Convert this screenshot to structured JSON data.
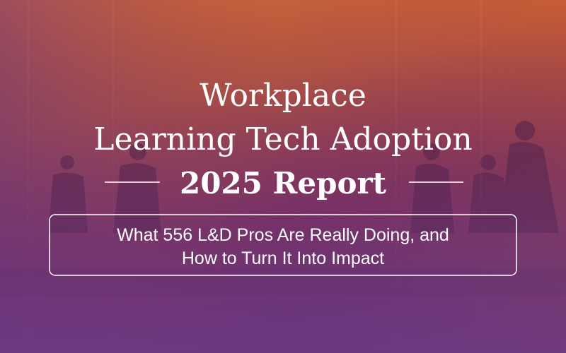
{
  "header": {
    "title_lines": [
      "Workplace",
      "Learning Tech Adoption"
    ],
    "report": "2025 Report"
  },
  "subtitle": {
    "lines": [
      "What 556 L&D Pros Are Really Doing, and",
      "How to Turn It Into Impact"
    ]
  }
}
